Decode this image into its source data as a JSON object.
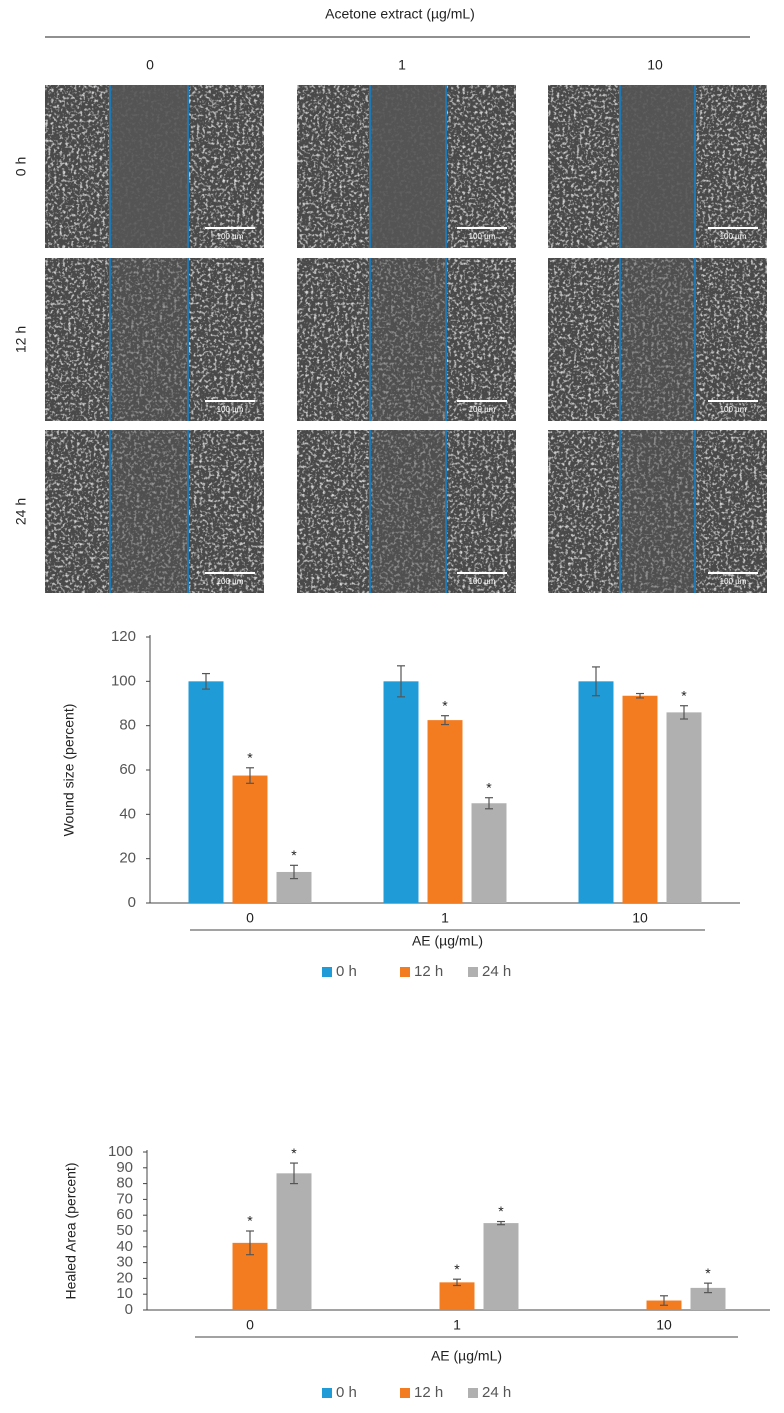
{
  "micrographs": {
    "title": "Acetone extract (µg/mL)",
    "columns": [
      "0",
      "1",
      "10"
    ],
    "rows": [
      "0 h",
      "12 h",
      "24 h"
    ],
    "scale_bar": "100 µm"
  },
  "chart_data": [
    {
      "type": "bar",
      "categories": [
        "0",
        "1",
        "10"
      ],
      "xlabel": "AE (µg/mL)",
      "ylabel": "Wound size (percent)",
      "ylim": [
        0,
        120
      ],
      "yticks": [
        0,
        20,
        40,
        60,
        80,
        100,
        120
      ],
      "legend": "bottom",
      "series": [
        {
          "name": "0 h",
          "color": "#1f9bd7",
          "values": [
            100,
            100,
            100
          ],
          "errors": [
            3.5,
            7,
            6.5
          ],
          "significance": [
            null,
            null,
            null
          ]
        },
        {
          "name": "12 h",
          "color": "#f47c20",
          "values": [
            57.5,
            82.5,
            93.5
          ],
          "errors": [
            3.5,
            2,
            1
          ],
          "significance": [
            "*",
            "*",
            null
          ]
        },
        {
          "name": "24 h",
          "color": "#b0b0b0",
          "values": [
            14,
            45,
            86
          ],
          "errors": [
            3,
            2.5,
            3
          ],
          "significance": [
            "*",
            "*",
            "*"
          ]
        }
      ]
    },
    {
      "type": "bar",
      "categories": [
        "0",
        "1",
        "10"
      ],
      "xlabel": "AE (µg/mL)",
      "ylabel": "Healed Area (percent)",
      "ylim": [
        0,
        100
      ],
      "yticks": [
        0,
        10,
        20,
        30,
        40,
        50,
        60,
        70,
        80,
        90,
        100
      ],
      "legend": "bottom",
      "series": [
        {
          "name": "0 h",
          "color": "#1f9bd7",
          "values": [
            0,
            0,
            0
          ],
          "errors": [
            0,
            0,
            0
          ],
          "significance": [
            null,
            null,
            null
          ]
        },
        {
          "name": "12 h",
          "color": "#f47c20",
          "values": [
            42.5,
            17.5,
            6
          ],
          "errors": [
            7.5,
            2,
            3
          ],
          "significance": [
            "*",
            "*",
            null
          ]
        },
        {
          "name": "24 h",
          "color": "#b0b0b0",
          "values": [
            86.5,
            55,
            14
          ],
          "errors": [
            6.5,
            1,
            3
          ],
          "significance": [
            "*",
            "*",
            "*"
          ]
        }
      ]
    }
  ]
}
